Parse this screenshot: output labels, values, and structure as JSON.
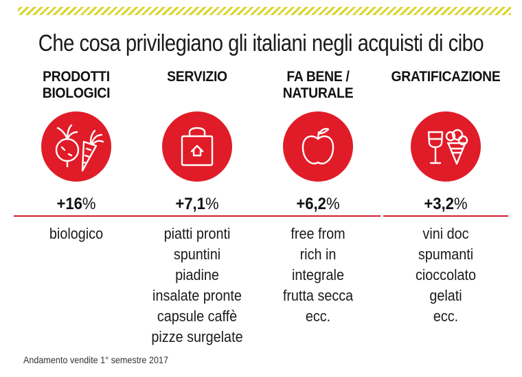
{
  "title": "Che cosa privilegiano gli italiani negli acquisti di cibo",
  "footnote": "Andamento vendite 1° semestre 2017",
  "colors": {
    "accent": "#e01c28",
    "stripe": "#d9d62a"
  },
  "categories": [
    {
      "line1": "PRODOTTI",
      "line2": "BIOLOGICI",
      "icon": "vegetables-icon",
      "pct_value": "+16",
      "pct_sign": "%",
      "items": [
        "biologico"
      ]
    },
    {
      "line1": "SERVIZIO",
      "line2": "",
      "icon": "shopping-bag-icon",
      "pct_value": "+7,1",
      "pct_sign": "%",
      "items": [
        "piatti pronti",
        "spuntini",
        "piadine",
        "insalate pronte",
        "capsule caffè",
        "pizze surgelate"
      ]
    },
    {
      "line1": "FA BENE /",
      "line2": "NATURALE",
      "icon": "apple-icon",
      "pct_value": "+6,2",
      "pct_sign": "%",
      "items": [
        "free from",
        "rich in",
        "integrale",
        "frutta secca",
        "ecc."
      ]
    },
    {
      "line1": "GRATIFICAZIONE",
      "line2": "",
      "icon": "wine-and-icecream-icon",
      "pct_value": "+3,2",
      "pct_sign": "%",
      "items": [
        "vini doc",
        "spumanti",
        "cioccolato",
        "gelati",
        "ecc."
      ]
    }
  ],
  "chart_data": {
    "type": "table",
    "title": "Che cosa privilegiano gli italiani negli acquisti di cibo",
    "categories": [
      "PRODOTTI BIOLOGICI",
      "SERVIZIO",
      "FA BENE / NATURALE",
      "GRATIFICAZIONE"
    ],
    "values": [
      16,
      7.1,
      6.2,
      3.2
    ],
    "value_labels": [
      "+16%",
      "+7,1%",
      "+6,2%",
      "+3,2%"
    ],
    "note": "Andamento vendite 1° semestre 2017"
  }
}
